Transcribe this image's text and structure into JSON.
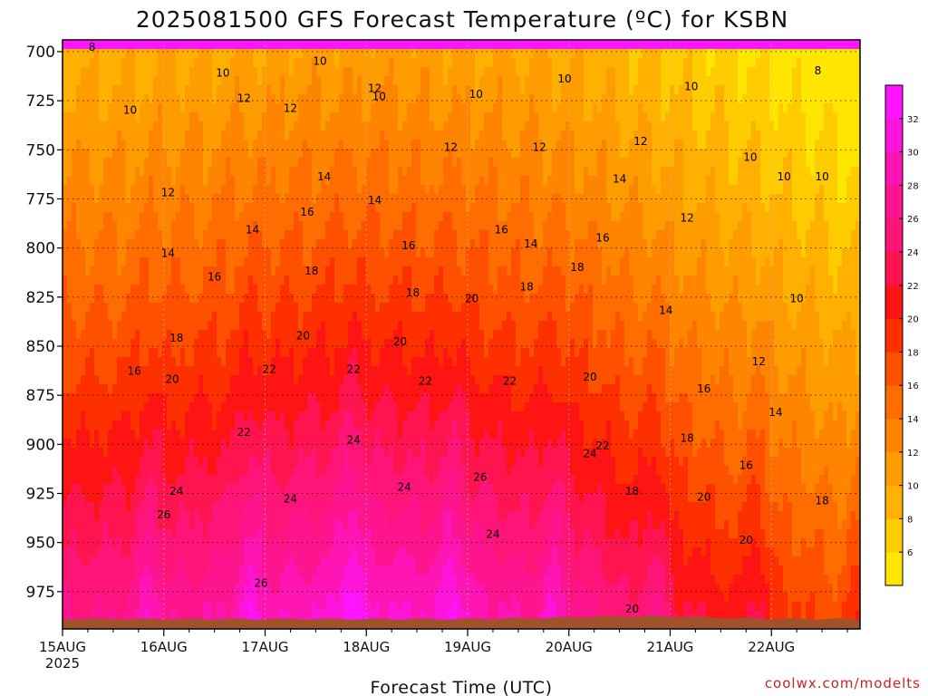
{
  "chart_data": {
    "type": "heatmap",
    "title": "2025081500 GFS Forecast Temperature (ºC) for KSBN",
    "xlabel": "Forecast Time (UTC)",
    "ylabel": "",
    "credit": "coolwx.com/modelts",
    "x_ticks": [
      "15AUG",
      "16AUG",
      "17AUG",
      "18AUG",
      "19AUG",
      "20AUG",
      "21AUG",
      "22AUG"
    ],
    "x_tick_sub": "2025",
    "x_hours_range": [
      0,
      189
    ],
    "y_ticks": [
      700,
      725,
      750,
      775,
      800,
      825,
      850,
      875,
      900,
      925,
      950,
      975
    ],
    "y_range_hpa": [
      694,
      994
    ],
    "grid": true,
    "colorbar": {
      "placement": "right",
      "levels": [
        4,
        6,
        8,
        10,
        12,
        14,
        16,
        18,
        20,
        22,
        24,
        26,
        28,
        30,
        32,
        34
      ],
      "labels": [
        6,
        8,
        10,
        12,
        14,
        16,
        18,
        20,
        22,
        24,
        26,
        28,
        30,
        32
      ],
      "colors": [
        "#ffe600",
        "#ffcc00",
        "#ffb000",
        "#ff9c00",
        "#ff8400",
        "#ff6c00",
        "#ff5000",
        "#ff3000",
        "#ff1414",
        "#ff1450",
        "#ff1478",
        "#ff1490",
        "#ff14b4",
        "#ff14dc",
        "#ff14ff"
      ]
    },
    "terrain_color": "#a0522d",
    "contour_labels": [
      {
        "text": "8",
        "x": 7,
        "y": 698
      },
      {
        "text": "10",
        "x": 61,
        "y": 705
      },
      {
        "text": "10",
        "x": 38,
        "y": 711
      },
      {
        "text": "12",
        "x": 43,
        "y": 724
      },
      {
        "text": "10",
        "x": 16,
        "y": 730
      },
      {
        "text": "12",
        "x": 54,
        "y": 729
      },
      {
        "text": "12",
        "x": 74,
        "y": 719
      },
      {
        "text": "10",
        "x": 75,
        "y": 723
      },
      {
        "text": "10",
        "x": 98,
        "y": 722
      },
      {
        "text": "10",
        "x": 119,
        "y": 714
      },
      {
        "text": "10",
        "x": 149,
        "y": 718
      },
      {
        "text": "8",
        "x": 179,
        "y": 710
      },
      {
        "text": "12",
        "x": 92,
        "y": 749
      },
      {
        "text": "12",
        "x": 113,
        "y": 749
      },
      {
        "text": "12",
        "x": 137,
        "y": 746
      },
      {
        "text": "14",
        "x": 62,
        "y": 764
      },
      {
        "text": "12",
        "x": 25,
        "y": 772
      },
      {
        "text": "14",
        "x": 132,
        "y": 765
      },
      {
        "text": "10",
        "x": 163,
        "y": 754
      },
      {
        "text": "10",
        "x": 171,
        "y": 764
      },
      {
        "text": "10",
        "x": 180,
        "y": 764
      },
      {
        "text": "16",
        "x": 58,
        "y": 782
      },
      {
        "text": "14",
        "x": 74,
        "y": 776
      },
      {
        "text": "14",
        "x": 45,
        "y": 791
      },
      {
        "text": "16",
        "x": 82,
        "y": 799
      },
      {
        "text": "16",
        "x": 104,
        "y": 791
      },
      {
        "text": "14",
        "x": 111,
        "y": 798
      },
      {
        "text": "16",
        "x": 128,
        "y": 795
      },
      {
        "text": "12",
        "x": 148,
        "y": 785
      },
      {
        "text": "14",
        "x": 25,
        "y": 803
      },
      {
        "text": "16",
        "x": 36,
        "y": 815
      },
      {
        "text": "18",
        "x": 59,
        "y": 812
      },
      {
        "text": "18",
        "x": 122,
        "y": 810
      },
      {
        "text": "18",
        "x": 83,
        "y": 823
      },
      {
        "text": "18",
        "x": 110,
        "y": 820
      },
      {
        "text": "20",
        "x": 97,
        "y": 826
      },
      {
        "text": "14",
        "x": 143,
        "y": 832
      },
      {
        "text": "10",
        "x": 174,
        "y": 826
      },
      {
        "text": "18",
        "x": 27,
        "y": 846
      },
      {
        "text": "20",
        "x": 57,
        "y": 845
      },
      {
        "text": "20",
        "x": 80,
        "y": 848
      },
      {
        "text": "16",
        "x": 17,
        "y": 863
      },
      {
        "text": "12",
        "x": 165,
        "y": 858
      },
      {
        "text": "22",
        "x": 49,
        "y": 862
      },
      {
        "text": "22",
        "x": 69,
        "y": 862
      },
      {
        "text": "22",
        "x": 86,
        "y": 868
      },
      {
        "text": "22",
        "x": 106,
        "y": 868
      },
      {
        "text": "20",
        "x": 26,
        "y": 867
      },
      {
        "text": "20",
        "x": 125,
        "y": 866
      },
      {
        "text": "16",
        "x": 152,
        "y": 872
      },
      {
        "text": "14",
        "x": 169,
        "y": 884
      },
      {
        "text": "22",
        "x": 43,
        "y": 894
      },
      {
        "text": "24",
        "x": 69,
        "y": 898
      },
      {
        "text": "24",
        "x": 125,
        "y": 905
      },
      {
        "text": "22",
        "x": 128,
        "y": 901
      },
      {
        "text": "18",
        "x": 148,
        "y": 897
      },
      {
        "text": "16",
        "x": 162,
        "y": 911
      },
      {
        "text": "26",
        "x": 99,
        "y": 917
      },
      {
        "text": "24",
        "x": 27,
        "y": 924
      },
      {
        "text": "24",
        "x": 81,
        "y": 922
      },
      {
        "text": "24",
        "x": 54,
        "y": 928
      },
      {
        "text": "18",
        "x": 135,
        "y": 924
      },
      {
        "text": "20",
        "x": 152,
        "y": 927
      },
      {
        "text": "26",
        "x": 24,
        "y": 936
      },
      {
        "text": "18",
        "x": 180,
        "y": 929
      },
      {
        "text": "24",
        "x": 102,
        "y": 946
      },
      {
        "text": "20",
        "x": 162,
        "y": 949
      },
      {
        "text": "26",
        "x": 47,
        "y": 971
      },
      {
        "text": "20",
        "x": 135,
        "y": 984
      }
    ]
  }
}
